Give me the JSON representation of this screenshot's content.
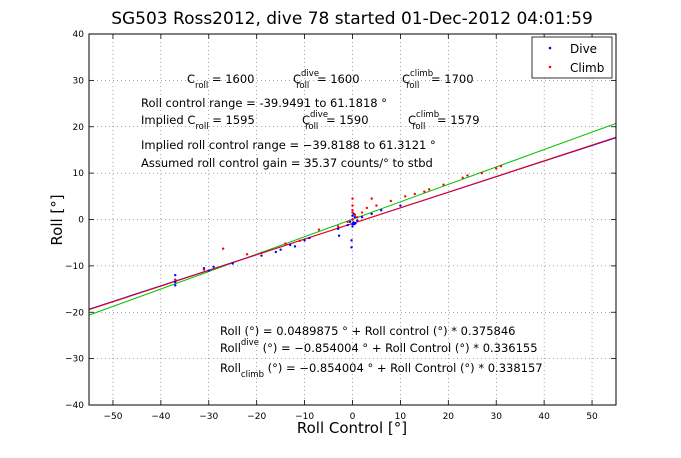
{
  "chart_data": {
    "type": "scatter",
    "title": "SG503 Ross2012, dive 78 started 01-Dec-2012 04:01:59",
    "xlabel": "Roll Control [°]",
    "ylabel": "Roll [°]",
    "xlim": [
      -55,
      55
    ],
    "ylim": [
      -40,
      40
    ],
    "xticks": [
      -50,
      -40,
      -30,
      -20,
      -10,
      0,
      10,
      20,
      30,
      40,
      50
    ],
    "yticks": [
      -40,
      -30,
      -20,
      -10,
      0,
      10,
      20,
      30,
      40
    ],
    "grid": true,
    "legend": {
      "placement": "top-right",
      "entries": [
        {
          "label": "Dive",
          "color": "#0000ff"
        },
        {
          "label": "Climb",
          "color": "#ff0000"
        }
      ]
    },
    "series": [
      {
        "name": "Dive",
        "color": "#0000ff",
        "points": [
          [
            -37,
            -12
          ],
          [
            -37,
            -13
          ],
          [
            -37,
            -13.5
          ],
          [
            -37,
            -14.2
          ],
          [
            -31,
            -10.5
          ],
          [
            -30,
            -11
          ],
          [
            -29,
            -10.2
          ],
          [
            -25,
            -9.5
          ],
          [
            -19,
            -7.8
          ],
          [
            -16,
            -7
          ],
          [
            -15,
            -6.5
          ],
          [
            -12,
            -5.8
          ],
          [
            -13,
            -5.5
          ],
          [
            -10,
            -4.5
          ],
          [
            -9,
            -4
          ],
          [
            -3,
            -2
          ],
          [
            -2.8,
            -3.5
          ],
          [
            -1,
            -1.2
          ],
          [
            -0.5,
            -0.5
          ],
          [
            -0.2,
            -4.5
          ],
          [
            -0.2,
            -6
          ],
          [
            0,
            -1
          ],
          [
            0,
            0
          ],
          [
            0,
            0.8
          ],
          [
            0,
            -1.5
          ],
          [
            0.2,
            -0.6
          ],
          [
            0.3,
            1.2
          ],
          [
            0.4,
            -1
          ],
          [
            0.5,
            0.5
          ],
          [
            0.6,
            -0.8
          ],
          [
            1,
            -0.2
          ],
          [
            2,
            0.5
          ],
          [
            4,
            1.2
          ],
          [
            6,
            2
          ],
          [
            10,
            3
          ]
        ]
      },
      {
        "name": "Climb",
        "color": "#ff0000",
        "points": [
          [
            -37,
            -13
          ],
          [
            -31,
            -10.8
          ],
          [
            -27,
            -6.3
          ],
          [
            -22,
            -7.5
          ],
          [
            -19,
            -7.2
          ],
          [
            -14,
            -5.2
          ],
          [
            -11,
            -4.6
          ],
          [
            -7,
            -2.2
          ],
          [
            -3,
            -1.5
          ],
          [
            -1,
            -0.5
          ],
          [
            0,
            0
          ],
          [
            0,
            1.5
          ],
          [
            0,
            2
          ],
          [
            0,
            3
          ],
          [
            0,
            4.5
          ],
          [
            0.5,
            1
          ],
          [
            1,
            0.5
          ],
          [
            2,
            1.5
          ],
          [
            3,
            2.5
          ],
          [
            4,
            4.5
          ],
          [
            5,
            3
          ],
          [
            8,
            4
          ],
          [
            11,
            5
          ],
          [
            13,
            5.5
          ],
          [
            15,
            6
          ],
          [
            16,
            6.5
          ],
          [
            19,
            7.5
          ],
          [
            23,
            9
          ],
          [
            24,
            9.5
          ],
          [
            27,
            10
          ],
          [
            30,
            11
          ],
          [
            31,
            11.5
          ]
        ]
      }
    ],
    "fit_lines": [
      {
        "name": "Roll",
        "color": "#00c000",
        "intercept": 0.0489875,
        "slope": 0.375846
      },
      {
        "name": "Roll dive",
        "color": "#0000ff",
        "intercept": -0.854004,
        "slope": 0.336155
      },
      {
        "name": "Roll climb",
        "color": "#ff0000",
        "intercept": -0.854004,
        "slope": 0.338157
      }
    ]
  },
  "annotations": {
    "c_roll": {
      "c": "C",
      "roll": "roll",
      "c_value": " = 1600",
      "c_dive_sup": "dive",
      "c_dive_value": " = 1600",
      "c_climb_sup": "climb",
      "c_climb_value": " = 1700"
    },
    "range_line": "Roll control range = -39.9491 to 61.1818 °",
    "implied": {
      "prefix": "Implied C",
      "roll": "roll",
      "c_value": " = 1595",
      "c": "C",
      "dive_sup": "dive",
      "dive_value": " = 1590",
      "climb_sup": "climb",
      "climb_value": " = 1579"
    },
    "implied_range": "Implied roll control range = −39.8188 to 61.3121 °",
    "gain": "Assumed roll control gain = 35.37 counts/° to stbd",
    "fit_text": {
      "line1": "Roll (°) = 0.0489875 ° + Roll control (°) * 0.375846",
      "line2_prefix": "Roll",
      "line2_sub": "dive",
      "line2_rest": " (°) = −0.854004 ° + Roll Control (°) * 0.336155",
      "line3_prefix": "Roll",
      "line3_sub": "climb",
      "line3_rest": " (°) = −0.854004 ° + Roll Control (°) * 0.338157"
    }
  }
}
